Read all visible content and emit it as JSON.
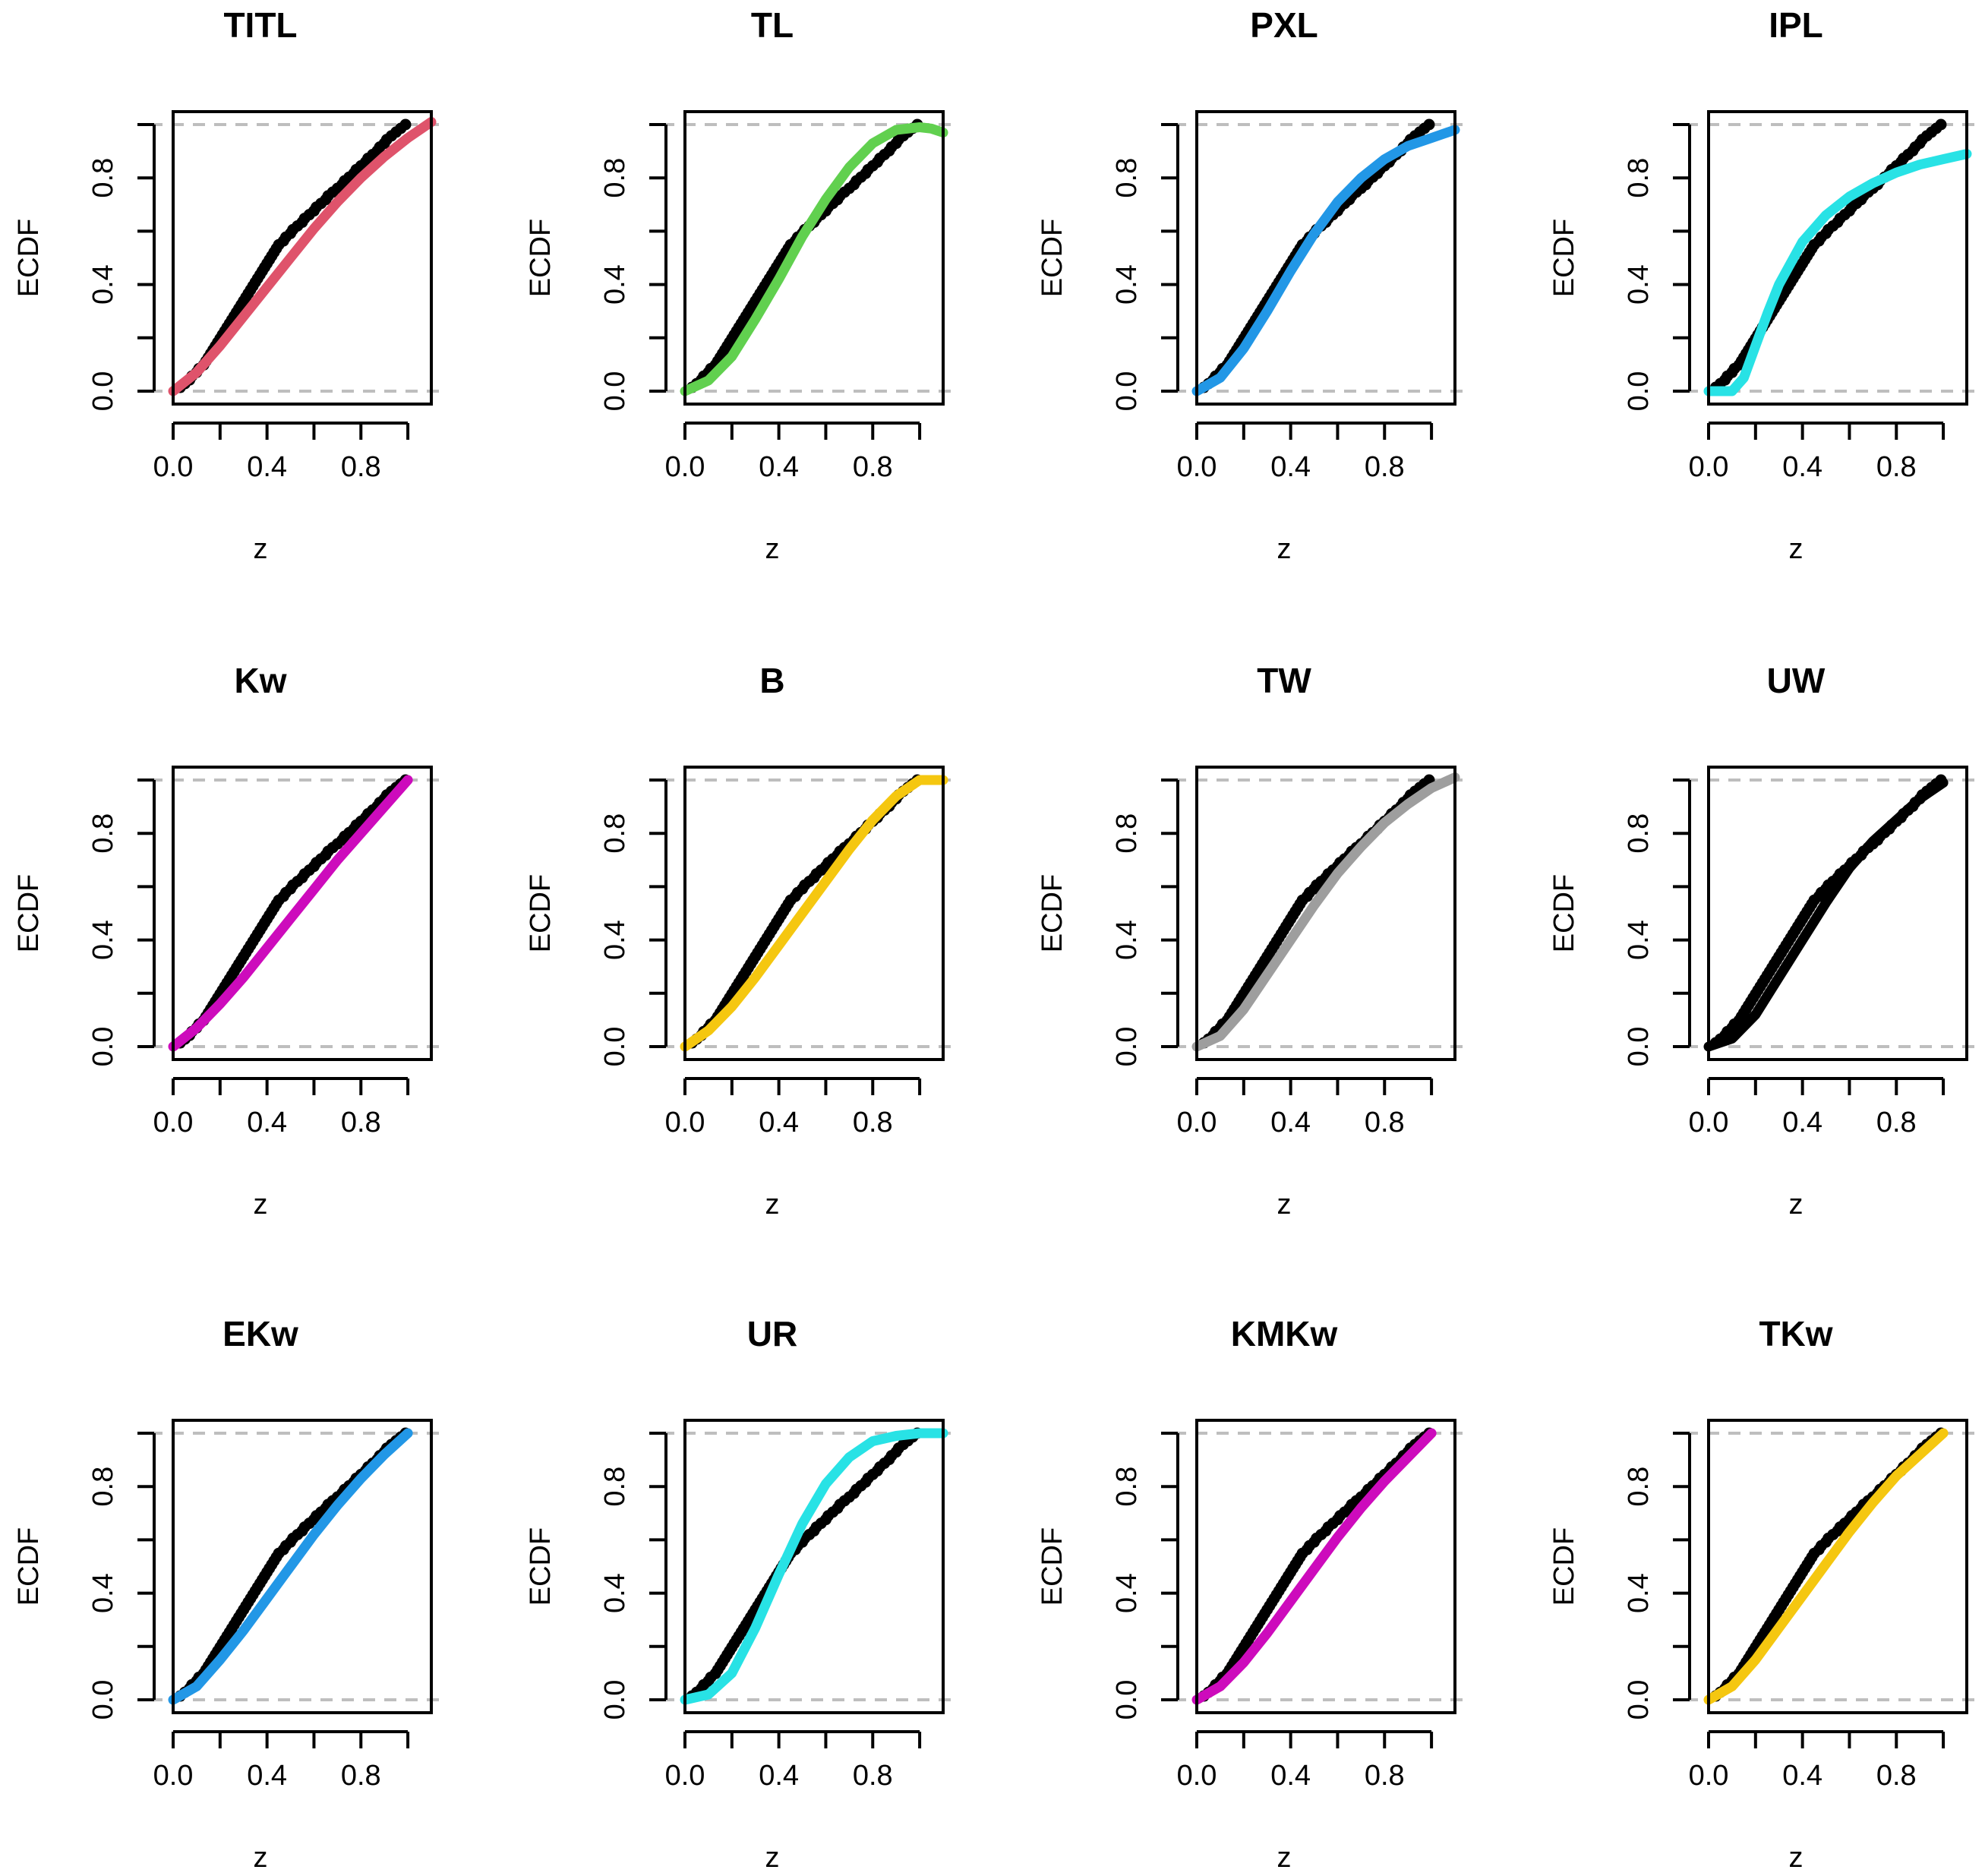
{
  "figure": {
    "rows": 3,
    "cols": 4
  },
  "chart_data": [
    {
      "type": "line",
      "title": "TITL",
      "xlabel": "z",
      "ylabel": "ECDF",
      "xlim": [
        0,
        1.1
      ],
      "ylim": [
        0,
        1
      ],
      "x_ticks": [
        "0.0",
        "0.4",
        "0.8"
      ],
      "y_ticks": [
        "0.0",
        "0.4",
        "0.8"
      ],
      "reference_lines": [
        0,
        1
      ],
      "series": [
        {
          "kind": "ecdf_points",
          "color": "#000000"
        },
        {
          "kind": "fitted_cdf",
          "color": "#DF536B",
          "x": [
            0,
            0.1,
            0.2,
            0.3,
            0.4,
            0.5,
            0.6,
            0.7,
            0.8,
            0.9,
            1.0,
            1.1
          ],
          "y": [
            0,
            0.07,
            0.17,
            0.28,
            0.39,
            0.5,
            0.61,
            0.71,
            0.8,
            0.88,
            0.95,
            1.01
          ]
        }
      ]
    },
    {
      "type": "line",
      "title": "TL",
      "xlabel": "z",
      "ylabel": "ECDF",
      "xlim": [
        0,
        1.1
      ],
      "ylim": [
        0,
        1
      ],
      "x_ticks": [
        "0.0",
        "0.4",
        "0.8"
      ],
      "y_ticks": [
        "0.0",
        "0.4",
        "0.8"
      ],
      "reference_lines": [
        0,
        1
      ],
      "series": [
        {
          "kind": "ecdf_points",
          "color": "#000000"
        },
        {
          "kind": "fitted_cdf",
          "color": "#61D04F",
          "x": [
            0,
            0.1,
            0.2,
            0.3,
            0.4,
            0.5,
            0.6,
            0.7,
            0.8,
            0.9,
            1.0,
            1.05,
            1.1
          ],
          "y": [
            0,
            0.04,
            0.13,
            0.27,
            0.42,
            0.58,
            0.72,
            0.84,
            0.93,
            0.98,
            0.99,
            0.985,
            0.97
          ]
        }
      ]
    },
    {
      "type": "line",
      "title": "PXL",
      "xlabel": "z",
      "ylabel": "ECDF",
      "xlim": [
        0,
        1.1
      ],
      "ylim": [
        0,
        1
      ],
      "x_ticks": [
        "0.0",
        "0.4",
        "0.8"
      ],
      "y_ticks": [
        "0.0",
        "0.4",
        "0.8"
      ],
      "reference_lines": [
        0,
        1
      ],
      "series": [
        {
          "kind": "ecdf_points",
          "color": "#000000"
        },
        {
          "kind": "fitted_cdf",
          "color": "#2297E6",
          "x": [
            0,
            0.1,
            0.2,
            0.3,
            0.4,
            0.5,
            0.6,
            0.7,
            0.8,
            0.9,
            1.0,
            1.1
          ],
          "y": [
            0,
            0.05,
            0.16,
            0.3,
            0.45,
            0.59,
            0.71,
            0.8,
            0.87,
            0.92,
            0.95,
            0.98
          ]
        }
      ]
    },
    {
      "type": "line",
      "title": "IPL",
      "xlabel": "z",
      "ylabel": "ECDF",
      "xlim": [
        0,
        1.1
      ],
      "ylim": [
        0,
        1
      ],
      "x_ticks": [
        "0.0",
        "0.4",
        "0.8"
      ],
      "y_ticks": [
        "0.0",
        "0.4",
        "0.8"
      ],
      "reference_lines": [
        0,
        1
      ],
      "series": [
        {
          "kind": "ecdf_points",
          "color": "#000000"
        },
        {
          "kind": "fitted_cdf",
          "color": "#28E2E5",
          "x": [
            0,
            0.1,
            0.15,
            0.2,
            0.25,
            0.3,
            0.4,
            0.5,
            0.6,
            0.7,
            0.8,
            0.9,
            1.0,
            1.1
          ],
          "y": [
            0,
            0,
            0.05,
            0.17,
            0.29,
            0.4,
            0.56,
            0.66,
            0.73,
            0.78,
            0.82,
            0.85,
            0.87,
            0.89
          ]
        }
      ]
    },
    {
      "type": "line",
      "title": "Kw",
      "xlabel": "z",
      "ylabel": "ECDF",
      "xlim": [
        0,
        1.1
      ],
      "ylim": [
        0,
        1
      ],
      "x_ticks": [
        "0.0",
        "0.4",
        "0.8"
      ],
      "y_ticks": [
        "0.0",
        "0.4",
        "0.8"
      ],
      "reference_lines": [
        0,
        1
      ],
      "series": [
        {
          "kind": "ecdf_points",
          "color": "#000000"
        },
        {
          "kind": "fitted_cdf",
          "color": "#CD0BBC",
          "x": [
            0,
            0.1,
            0.2,
            0.3,
            0.4,
            0.5,
            0.6,
            0.7,
            0.8,
            0.9,
            1.0
          ],
          "y": [
            0,
            0.07,
            0.16,
            0.26,
            0.37,
            0.48,
            0.59,
            0.7,
            0.8,
            0.9,
            1.0
          ]
        }
      ]
    },
    {
      "type": "line",
      "title": "B",
      "xlabel": "z",
      "ylabel": "ECDF",
      "xlim": [
        0,
        1.1
      ],
      "ylim": [
        0,
        1
      ],
      "x_ticks": [
        "0.0",
        "0.4",
        "0.8"
      ],
      "y_ticks": [
        "0.0",
        "0.4",
        "0.8"
      ],
      "reference_lines": [
        0,
        1
      ],
      "series": [
        {
          "kind": "ecdf_points",
          "color": "#000000"
        },
        {
          "kind": "fitted_cdf",
          "color": "#F5C710",
          "x": [
            0,
            0.1,
            0.2,
            0.3,
            0.4,
            0.5,
            0.6,
            0.7,
            0.8,
            0.9,
            1.0,
            1.1
          ],
          "y": [
            0,
            0.06,
            0.15,
            0.26,
            0.38,
            0.5,
            0.62,
            0.74,
            0.85,
            0.94,
            1.0,
            1.0
          ]
        }
      ]
    },
    {
      "type": "line",
      "title": "TW",
      "xlabel": "z",
      "ylabel": "ECDF",
      "xlim": [
        0,
        1.1
      ],
      "ylim": [
        0,
        1
      ],
      "x_ticks": [
        "0.0",
        "0.4",
        "0.8"
      ],
      "y_ticks": [
        "0.0",
        "0.4",
        "0.8"
      ],
      "reference_lines": [
        0,
        1
      ],
      "series": [
        {
          "kind": "ecdf_points",
          "color": "#000000"
        },
        {
          "kind": "fitted_cdf",
          "color": "#9E9E9E",
          "x": [
            0,
            0.1,
            0.2,
            0.3,
            0.4,
            0.5,
            0.6,
            0.7,
            0.8,
            0.9,
            1.0,
            1.1
          ],
          "y": [
            0,
            0.04,
            0.14,
            0.27,
            0.4,
            0.53,
            0.65,
            0.75,
            0.84,
            0.91,
            0.97,
            1.01
          ]
        }
      ]
    },
    {
      "type": "line",
      "title": "UW",
      "xlabel": "z",
      "ylabel": "ECDF",
      "xlim": [
        0,
        1.1
      ],
      "ylim": [
        0,
        1
      ],
      "x_ticks": [
        "0.0",
        "0.4",
        "0.8"
      ],
      "y_ticks": [
        "0.0",
        "0.4",
        "0.8"
      ],
      "reference_lines": [
        0,
        1
      ],
      "series": [
        {
          "kind": "ecdf_points",
          "color": "#000000"
        },
        {
          "kind": "fitted_cdf",
          "color": "#000000",
          "x": [
            0,
            0.1,
            0.2,
            0.3,
            0.4,
            0.5,
            0.6,
            0.7,
            0.8,
            0.9,
            1.0
          ],
          "y": [
            0,
            0.03,
            0.12,
            0.26,
            0.4,
            0.54,
            0.67,
            0.77,
            0.85,
            0.93,
            0.99
          ]
        }
      ]
    },
    {
      "type": "line",
      "title": "EKw",
      "xlabel": "z",
      "ylabel": "ECDF",
      "xlim": [
        0,
        1.1
      ],
      "ylim": [
        0,
        1
      ],
      "x_ticks": [
        "0.0",
        "0.4",
        "0.8"
      ],
      "y_ticks": [
        "0.0",
        "0.4",
        "0.8"
      ],
      "reference_lines": [
        0,
        1
      ],
      "series": [
        {
          "kind": "ecdf_points",
          "color": "#000000"
        },
        {
          "kind": "fitted_cdf",
          "color": "#2297E6",
          "x": [
            0,
            0.1,
            0.2,
            0.3,
            0.4,
            0.5,
            0.6,
            0.7,
            0.8,
            0.9,
            1.0
          ],
          "y": [
            0,
            0.05,
            0.15,
            0.26,
            0.38,
            0.5,
            0.62,
            0.73,
            0.83,
            0.92,
            1.0
          ]
        }
      ]
    },
    {
      "type": "line",
      "title": "UR",
      "xlabel": "z",
      "ylabel": "ECDF",
      "xlim": [
        0,
        1.1
      ],
      "ylim": [
        0,
        1
      ],
      "x_ticks": [
        "0.0",
        "0.4",
        "0.8"
      ],
      "y_ticks": [
        "0.0",
        "0.4",
        "0.8"
      ],
      "reference_lines": [
        0,
        1
      ],
      "series": [
        {
          "kind": "ecdf_points",
          "color": "#000000"
        },
        {
          "kind": "fitted_cdf",
          "color": "#28E2E5",
          "x": [
            0,
            0.1,
            0.2,
            0.3,
            0.4,
            0.5,
            0.6,
            0.7,
            0.8,
            0.9,
            1.0,
            1.1
          ],
          "y": [
            0,
            0.02,
            0.1,
            0.27,
            0.47,
            0.66,
            0.81,
            0.91,
            0.97,
            0.99,
            1.0,
            1.0
          ]
        }
      ]
    },
    {
      "type": "line",
      "title": "KMKw",
      "xlabel": "z",
      "ylabel": "ECDF",
      "xlim": [
        0,
        1.1
      ],
      "ylim": [
        0,
        1
      ],
      "x_ticks": [
        "0.0",
        "0.4",
        "0.8"
      ],
      "y_ticks": [
        "0.0",
        "0.4",
        "0.8"
      ],
      "reference_lines": [
        0,
        1
      ],
      "series": [
        {
          "kind": "ecdf_points",
          "color": "#000000"
        },
        {
          "kind": "fitted_cdf",
          "color": "#CD0BBC",
          "x": [
            0,
            0.1,
            0.2,
            0.3,
            0.4,
            0.5,
            0.6,
            0.7,
            0.8,
            0.9,
            1.0
          ],
          "y": [
            0,
            0.05,
            0.14,
            0.25,
            0.37,
            0.49,
            0.61,
            0.72,
            0.82,
            0.91,
            1.0
          ]
        }
      ]
    },
    {
      "type": "line",
      "title": "TKw",
      "xlabel": "z",
      "ylabel": "ECDF",
      "xlim": [
        0,
        1.1
      ],
      "ylim": [
        0,
        1
      ],
      "x_ticks": [
        "0.0",
        "0.4",
        "0.8"
      ],
      "y_ticks": [
        "0.0",
        "0.4",
        "0.8"
      ],
      "reference_lines": [
        0,
        1
      ],
      "series": [
        {
          "kind": "ecdf_points",
          "color": "#000000"
        },
        {
          "kind": "fitted_cdf",
          "color": "#F5C710",
          "x": [
            0,
            0.1,
            0.2,
            0.3,
            0.4,
            0.5,
            0.6,
            0.7,
            0.8,
            0.9,
            1.0
          ],
          "y": [
            0,
            0.05,
            0.15,
            0.27,
            0.39,
            0.51,
            0.63,
            0.74,
            0.84,
            0.92,
            1.0
          ]
        }
      ]
    }
  ],
  "ecdf_sample": [
    0.03,
    0.05,
    0.07,
    0.08,
    0.1,
    0.11,
    0.13,
    0.14,
    0.15,
    0.16,
    0.17,
    0.18,
    0.19,
    0.2,
    0.21,
    0.22,
    0.23,
    0.24,
    0.25,
    0.26,
    0.27,
    0.28,
    0.29,
    0.3,
    0.31,
    0.32,
    0.33,
    0.34,
    0.35,
    0.36,
    0.37,
    0.38,
    0.39,
    0.4,
    0.41,
    0.42,
    0.43,
    0.44,
    0.45,
    0.47,
    0.48,
    0.5,
    0.51,
    0.53,
    0.55,
    0.56,
    0.58,
    0.6,
    0.61,
    0.63,
    0.65,
    0.66,
    0.68,
    0.7,
    0.72,
    0.73,
    0.75,
    0.77,
    0.78,
    0.8,
    0.82,
    0.83,
    0.85,
    0.87,
    0.88,
    0.9,
    0.91,
    0.93,
    0.95,
    0.97,
    0.99
  ]
}
